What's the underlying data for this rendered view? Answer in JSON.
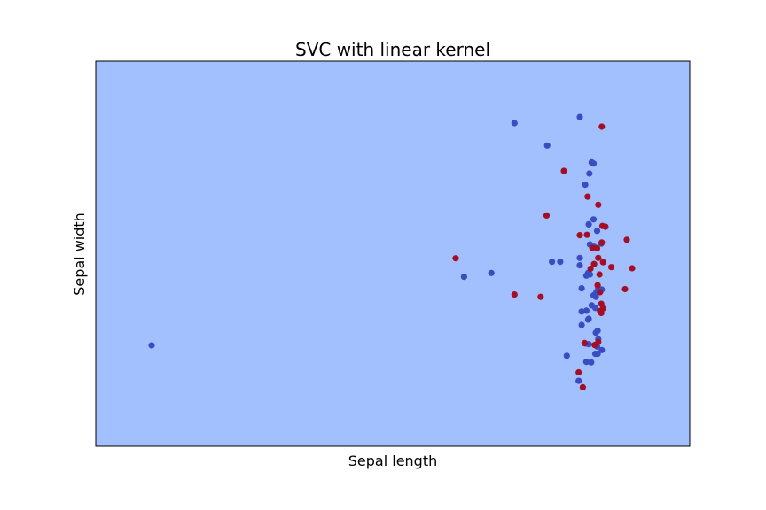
{
  "colors": {
    "background": "#ffffff",
    "decision_region": "#a2bffe",
    "class_0": "#3b4cc0",
    "class_1": "#a50f26",
    "frame": "#000000"
  },
  "chart_data": {
    "type": "scatter",
    "title": "SVC with linear kernel",
    "xlabel": "Sepal length",
    "ylabel": "Sepal width",
    "xticks": false,
    "yticks": false,
    "grid": false,
    "xlim": [
      0,
      100
    ],
    "ylim": [
      0,
      100
    ],
    "background_region": "single class region",
    "series": [
      {
        "name": "class 0",
        "color": "#3b4cc0",
        "points": [
          [
            70.5,
            83.9
          ],
          [
            81.5,
            85.5
          ],
          [
            76.0,
            78.1
          ],
          [
            83.5,
            73.7
          ],
          [
            83.8,
            73.4
          ],
          [
            83.1,
            70.8
          ],
          [
            82.4,
            67.9
          ],
          [
            83.8,
            58.9
          ],
          [
            83.0,
            57.6
          ],
          [
            84.4,
            55.9
          ],
          [
            85.1,
            52.6
          ],
          [
            83.9,
            51.8
          ],
          [
            83.2,
            52.4
          ],
          [
            76.8,
            47.9
          ],
          [
            78.2,
            47.9
          ],
          [
            81.5,
            48.9
          ],
          [
            81.5,
            47.0
          ],
          [
            82.6,
            44.3
          ],
          [
            82.9,
            45.0
          ],
          [
            83.2,
            44.6
          ],
          [
            84.6,
            41.0
          ],
          [
            85.2,
            40.7
          ],
          [
            84.3,
            40.1
          ],
          [
            81.8,
            41.0
          ],
          [
            83.8,
            39.2
          ],
          [
            84.2,
            38.8
          ],
          [
            83.5,
            36.6
          ],
          [
            84.1,
            35.9
          ],
          [
            82.6,
            35.2
          ],
          [
            81.8,
            35.0
          ],
          [
            83.0,
            33.1
          ],
          [
            82.9,
            32.9
          ],
          [
            81.8,
            31.5
          ],
          [
            82.4,
            26.7
          ],
          [
            83.0,
            26.5
          ],
          [
            84.4,
            25.9
          ],
          [
            85.2,
            25.0
          ],
          [
            84.1,
            24.0
          ],
          [
            84.5,
            24.0
          ],
          [
            83.4,
            21.8
          ],
          [
            82.6,
            21.9
          ],
          [
            84.6,
            27.8
          ],
          [
            84.5,
            30.0
          ],
          [
            84.2,
            29.5
          ],
          [
            79.3,
            23.5
          ],
          [
            81.3,
            17.0
          ],
          [
            62.0,
            44.0
          ],
          [
            66.6,
            45.0
          ],
          [
            9.4,
            26.2
          ]
        ]
      },
      {
        "name": "class 1",
        "color": "#a50f26",
        "points": [
          [
            85.2,
            83.0
          ],
          [
            78.8,
            71.5
          ],
          [
            82.8,
            64.8
          ],
          [
            84.6,
            62.7
          ],
          [
            75.9,
            59.9
          ],
          [
            85.3,
            57.2
          ],
          [
            85.8,
            57.0
          ],
          [
            81.5,
            54.8
          ],
          [
            82.7,
            54.9
          ],
          [
            89.4,
            53.6
          ],
          [
            85.2,
            52.9
          ],
          [
            83.6,
            51.5
          ],
          [
            84.4,
            51.4
          ],
          [
            84.6,
            48.9
          ],
          [
            85.4,
            47.8
          ],
          [
            83.9,
            47.3
          ],
          [
            86.8,
            46.5
          ],
          [
            83.3,
            46.1
          ],
          [
            90.3,
            46.2
          ],
          [
            84.8,
            44.6
          ],
          [
            60.6,
            48.8
          ],
          [
            84.5,
            41.8
          ],
          [
            89.1,
            40.8
          ],
          [
            84.9,
            40.0
          ],
          [
            70.5,
            39.4
          ],
          [
            74.9,
            38.8
          ],
          [
            85.1,
            37.0
          ],
          [
            85.4,
            35.8
          ],
          [
            84.9,
            35.1
          ],
          [
            85.1,
            34.6
          ],
          [
            84.6,
            27.1
          ],
          [
            82.3,
            26.8
          ],
          [
            84.0,
            26.3
          ],
          [
            81.3,
            19.2
          ],
          [
            82.0,
            15.3
          ]
        ]
      }
    ]
  }
}
